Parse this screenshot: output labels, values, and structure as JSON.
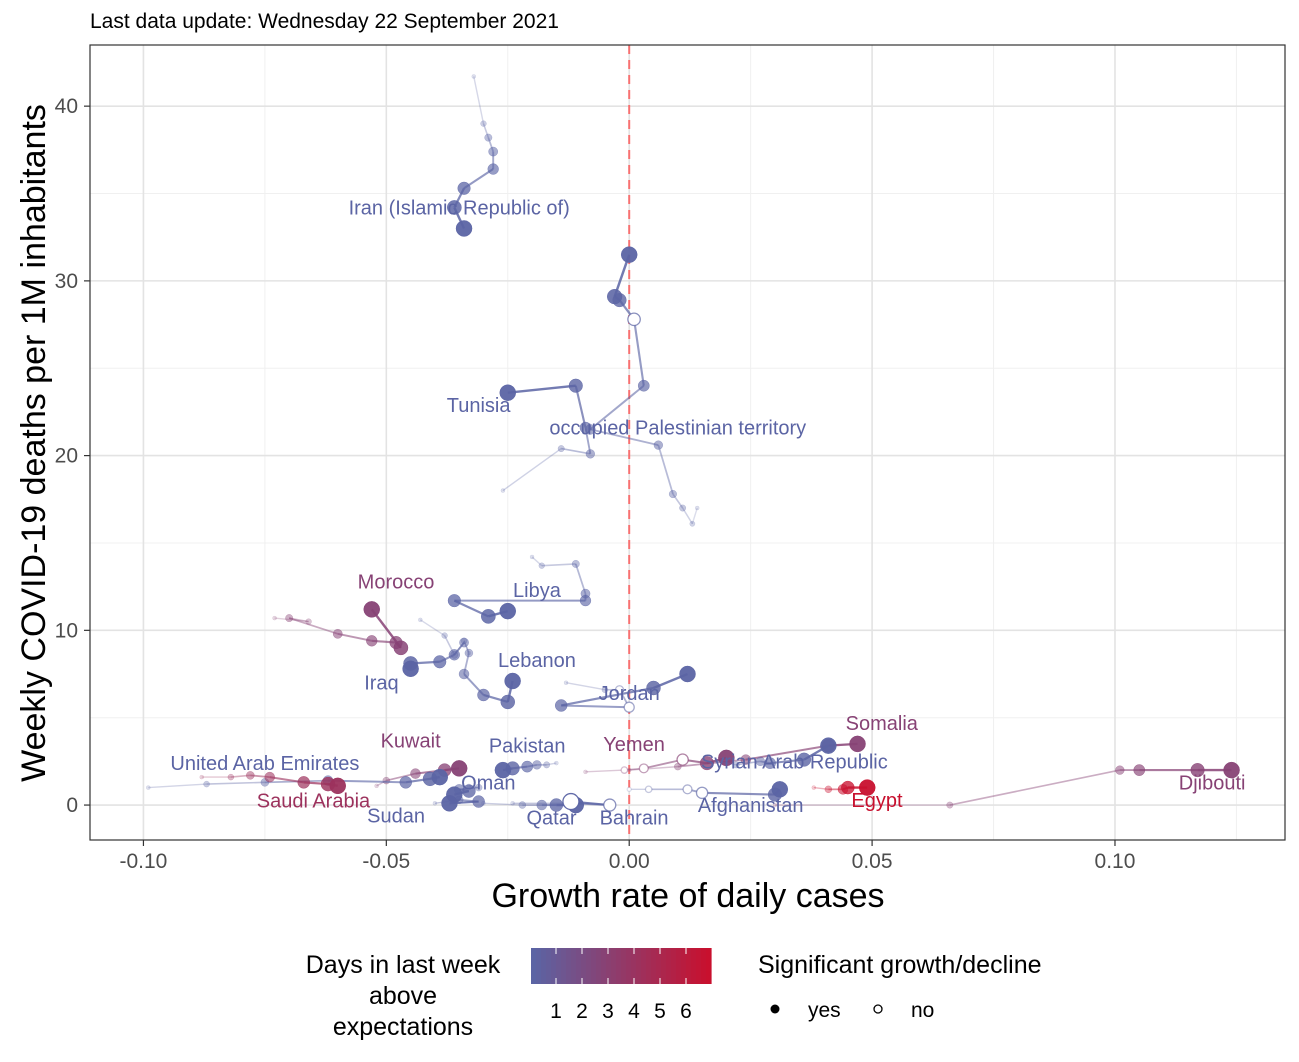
{
  "subtitle": "Last data update: Wednesday 22 September 2021",
  "chart_data": {
    "type": "scatter",
    "xlabel": "Growth rate of daily cases",
    "ylabel": "Weekly COVID-19 deaths per 1M inhabitants",
    "xlim": [
      -0.111,
      0.135
    ],
    "ylim": [
      -2,
      43.5
    ],
    "x_ticks": [
      -0.1,
      -0.05,
      0.0,
      0.05,
      0.1
    ],
    "x_tick_labels": [
      "-0.10",
      "-0.05",
      "0.00",
      "0.05",
      "0.10"
    ],
    "y_ticks": [
      0,
      10,
      20,
      30,
      40
    ],
    "y_tick_labels": [
      "0",
      "10",
      "20",
      "30",
      "40"
    ],
    "grid": true,
    "reference_line": {
      "x": 0,
      "color": "#f87171",
      "style": "dashed"
    },
    "colors": {
      "low": "#5b64a4",
      "high": "#c8102e"
    },
    "legend": {
      "days_title": [
        "Days in last week",
        "above",
        "expectations"
      ],
      "days_labels": [
        "1",
        "2",
        "3",
        "4",
        "5",
        "6"
      ],
      "sig_title": "Significant growth/decline",
      "sig_labels": [
        "yes",
        "no"
      ]
    },
    "series": [
      {
        "name": "Iran (Islamic Republic of)",
        "days": 1,
        "label_xy": [
          -0.035,
          33.8
        ],
        "points": [
          [
            -0.032,
            41.7
          ],
          [
            -0.03,
            39.0
          ],
          [
            -0.029,
            38.2
          ],
          [
            -0.028,
            37.4
          ],
          [
            -0.028,
            36.4
          ],
          [
            -0.034,
            35.3
          ],
          [
            -0.036,
            34.2
          ],
          [
            -0.034,
            33.0
          ]
        ],
        "sig": [
          1,
          1,
          1,
          1,
          1,
          1,
          1,
          1
        ]
      },
      {
        "name": "occupied Palestinian territory",
        "days": 1,
        "label_xy": [
          0.01,
          21.2
        ],
        "points": [
          [
            0.014,
            17.0
          ],
          [
            0.013,
            16.1
          ],
          [
            0.011,
            17.0
          ],
          [
            0.009,
            17.8
          ],
          [
            0.006,
            20.6
          ],
          [
            -0.008,
            21.5
          ],
          [
            0.003,
            24.0
          ],
          [
            0.001,
            27.8
          ],
          [
            -0.002,
            28.9
          ],
          [
            -0.003,
            29.1
          ],
          [
            0.0,
            31.5
          ]
        ],
        "sig": [
          1,
          1,
          1,
          1,
          1,
          1,
          1,
          0,
          1,
          1,
          1
        ]
      },
      {
        "name": "Tunisia",
        "days": 1,
        "label_xy": [
          -0.031,
          22.5
        ],
        "points": [
          [
            -0.026,
            18.0
          ],
          [
            -0.014,
            20.4
          ],
          [
            -0.008,
            20.1
          ],
          [
            -0.009,
            21.6
          ],
          [
            -0.011,
            24.0
          ],
          [
            -0.025,
            23.6
          ]
        ],
        "sig": [
          1,
          1,
          1,
          1,
          1,
          1
        ]
      },
      {
        "name": "Libya",
        "days": 1,
        "label_xy": [
          -0.019,
          11.9
        ],
        "points": [
          [
            -0.02,
            14.2
          ],
          [
            -0.018,
            13.7
          ],
          [
            -0.011,
            13.8
          ],
          [
            -0.009,
            12.1
          ],
          [
            -0.009,
            11.7
          ],
          [
            -0.036,
            11.7
          ],
          [
            -0.029,
            10.8
          ],
          [
            -0.025,
            11.1
          ]
        ],
        "sig": [
          1,
          1,
          1,
          1,
          1,
          1,
          1,
          1
        ]
      },
      {
        "name": "Morocco",
        "days": 3,
        "label_xy": [
          -0.048,
          12.4
        ],
        "points": [
          [
            -0.073,
            10.7
          ],
          [
            -0.066,
            10.5
          ],
          [
            -0.07,
            10.7
          ],
          [
            -0.06,
            9.8
          ],
          [
            -0.053,
            9.4
          ],
          [
            -0.048,
            9.3
          ],
          [
            -0.047,
            9.0
          ],
          [
            -0.053,
            11.2
          ]
        ],
        "sig": [
          1,
          1,
          1,
          1,
          1,
          1,
          1,
          1
        ]
      },
      {
        "name": "Iraq",
        "days": 1,
        "label_xy": [
          -0.051,
          6.6
        ],
        "points": [
          [
            -0.043,
            10.6
          ],
          [
            -0.038,
            9.7
          ],
          [
            -0.036,
            8.6
          ],
          [
            -0.034,
            9.3
          ],
          [
            -0.036,
            8.6
          ],
          [
            -0.039,
            8.2
          ],
          [
            -0.045,
            8.1
          ],
          [
            -0.045,
            7.8
          ]
        ],
        "sig": [
          1,
          1,
          1,
          1,
          1,
          1,
          1,
          1
        ]
      },
      {
        "name": "Lebanon",
        "days": 1,
        "label_xy": [
          -0.019,
          7.9
        ],
        "points": [
          [
            -0.033,
            8.7
          ],
          [
            -0.034,
            9.4
          ],
          [
            -0.033,
            8.7
          ],
          [
            -0.034,
            7.5
          ],
          [
            -0.03,
            6.3
          ],
          [
            -0.025,
            5.9
          ],
          [
            -0.024,
            7.1
          ]
        ],
        "sig": [
          1,
          1,
          1,
          1,
          1,
          1,
          1
        ]
      },
      {
        "name": "Jordan",
        "days": 1,
        "label_xy": [
          0.0,
          6.0
        ],
        "points": [
          [
            -0.013,
            7.0
          ],
          [
            -0.005,
            6.6
          ],
          [
            -0.002,
            6.6
          ],
          [
            0.0,
            5.6
          ],
          [
            -0.014,
            5.7
          ],
          [
            0.005,
            6.7
          ],
          [
            0.012,
            7.5
          ]
        ],
        "sig": [
          1,
          1,
          0,
          0,
          1,
          1,
          1
        ]
      },
      {
        "name": "Somalia",
        "days": 3,
        "label_xy": [
          0.052,
          4.3
        ],
        "points": [
          [
            0.0,
            2.0
          ],
          [
            0.01,
            2.2
          ],
          [
            0.024,
            2.6
          ],
          [
            0.041,
            3.4
          ],
          [
            0.047,
            3.5
          ]
        ],
        "sig": [
          1,
          1,
          1,
          1,
          1
        ]
      },
      {
        "name": "Kuwait",
        "days": 3,
        "label_xy": [
          -0.045,
          3.3
        ],
        "points": [
          [
            -0.052,
            1.1
          ],
          [
            -0.05,
            1.4
          ],
          [
            -0.044,
            1.8
          ],
          [
            -0.038,
            2.0
          ],
          [
            -0.035,
            2.1
          ]
        ],
        "sig": [
          1,
          1,
          1,
          1,
          1
        ]
      },
      {
        "name": "United Arab Emirates",
        "days": 1,
        "label_xy": [
          -0.075,
          2.0
        ],
        "points": [
          [
            -0.099,
            1.0
          ],
          [
            -0.087,
            1.2
          ],
          [
            -0.075,
            1.3
          ],
          [
            -0.062,
            1.4
          ],
          [
            -0.046,
            1.3
          ],
          [
            -0.041,
            1.5
          ],
          [
            -0.039,
            1.6
          ]
        ],
        "sig": [
          1,
          1,
          1,
          1,
          1,
          1,
          1
        ]
      },
      {
        "name": "Saudi Arabia",
        "days": 4,
        "label_xy": [
          -0.065,
          -0.15
        ],
        "points": [
          [
            -0.088,
            1.6
          ],
          [
            -0.082,
            1.6
          ],
          [
            -0.078,
            1.7
          ],
          [
            -0.074,
            1.6
          ],
          [
            -0.067,
            1.3
          ],
          [
            -0.062,
            1.2
          ],
          [
            -0.06,
            1.1
          ]
        ],
        "sig": [
          1,
          1,
          1,
          1,
          1,
          1,
          1
        ]
      },
      {
        "name": "Pakistan",
        "days": 1,
        "label_xy": [
          -0.021,
          3.0
        ],
        "points": [
          [
            -0.015,
            2.4
          ],
          [
            -0.017,
            2.3
          ],
          [
            -0.019,
            2.3
          ],
          [
            -0.021,
            2.2
          ],
          [
            -0.024,
            2.1
          ],
          [
            -0.026,
            2.0
          ]
        ],
        "sig": [
          1,
          1,
          1,
          1,
          1,
          1
        ]
      },
      {
        "name": "Yemen",
        "days": 3,
        "label_xy": [
          0.001,
          3.1
        ],
        "points": [
          [
            -0.009,
            1.9
          ],
          [
            -0.001,
            2.0
          ],
          [
            0.003,
            2.1
          ],
          [
            0.011,
            2.6
          ],
          [
            0.016,
            2.4
          ],
          [
            0.02,
            2.7
          ]
        ],
        "sig": [
          1,
          0,
          0,
          0,
          1,
          1
        ]
      },
      {
        "name": "Syrian Arab Republic",
        "days": 1,
        "label_xy": [
          0.034,
          2.1
        ],
        "points": [
          [
            0.018,
            2.5
          ],
          [
            0.022,
            2.3
          ],
          [
            0.027,
            2.5
          ],
          [
            0.029,
            2.4
          ],
          [
            0.036,
            2.6
          ],
          [
            0.041,
            3.4
          ]
        ],
        "sig": [
          1,
          1,
          1,
          1,
          1,
          1
        ]
      },
      {
        "name": "Oman",
        "days": 1,
        "label_xy": [
          -0.029,
          0.9
        ],
        "points": [
          [
            -0.033,
            1.1
          ],
          [
            -0.031,
            1.0
          ],
          [
            -0.035,
            0.9
          ],
          [
            -0.033,
            0.8
          ],
          [
            -0.036,
            0.6
          ]
        ],
        "sig": [
          1,
          1,
          1,
          1,
          1
        ]
      },
      {
        "name": "Sudan",
        "days": 1,
        "label_xy": [
          -0.048,
          -1.0
        ],
        "points": [
          [
            -0.04,
            0.1
          ],
          [
            -0.035,
            0.3
          ],
          [
            -0.031,
            0.2
          ],
          [
            -0.037,
            0.1
          ]
        ],
        "sig": [
          1,
          1,
          1,
          1
        ]
      },
      {
        "name": "Qatar",
        "days": 1,
        "label_xy": [
          -0.016,
          -1.1
        ],
        "points": [
          [
            -0.03,
            0.1
          ],
          [
            -0.022,
            0.0
          ],
          [
            -0.018,
            0.0
          ],
          [
            -0.015,
            0.0
          ],
          [
            -0.011,
            0.0
          ]
        ],
        "sig": [
          1,
          1,
          1,
          1,
          1
        ]
      },
      {
        "name": "Bahrain",
        "days": 1,
        "label_xy": [
          0.001,
          -1.1
        ],
        "points": [
          [
            -0.024,
            0.1
          ],
          [
            -0.012,
            0.1
          ],
          [
            -0.004,
            0.0
          ],
          [
            -0.012,
            0.2
          ]
        ],
        "sig": [
          1,
          0,
          0,
          0
        ]
      },
      {
        "name": "Afghanistan",
        "days": 1,
        "label_xy": [
          0.025,
          -0.4
        ],
        "points": [
          [
            0.0,
            0.9
          ],
          [
            0.004,
            0.9
          ],
          [
            0.012,
            0.9
          ],
          [
            0.015,
            0.7
          ],
          [
            0.03,
            0.6
          ],
          [
            0.031,
            0.9
          ]
        ],
        "sig": [
          0,
          0,
          0,
          0,
          1,
          1
        ]
      },
      {
        "name": "Egypt",
        "days": 6,
        "label_xy": [
          0.051,
          -0.1
        ],
        "points": [
          [
            0.038,
            1.0
          ],
          [
            0.041,
            0.9
          ],
          [
            0.044,
            0.9
          ],
          [
            0.045,
            1.0
          ],
          [
            0.049,
            1.0
          ]
        ],
        "sig": [
          1,
          1,
          1,
          1,
          1
        ]
      },
      {
        "name": "Djibouti",
        "days": 3,
        "label_xy": [
          0.12,
          0.9
        ],
        "points": [
          [
            0.03,
            0.0
          ],
          [
            0.066,
            0.0
          ],
          [
            0.101,
            2.0
          ],
          [
            0.105,
            2.0
          ],
          [
            0.117,
            2.0
          ],
          [
            0.124,
            2.0
          ]
        ],
        "sig": [
          1,
          1,
          1,
          1,
          1,
          1
        ]
      }
    ]
  }
}
